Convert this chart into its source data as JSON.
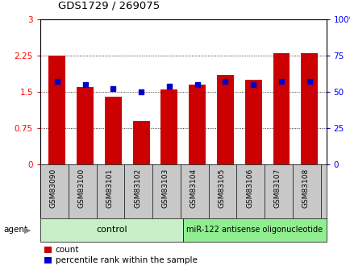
{
  "title": "GDS1729 / 269075",
  "categories": [
    "GSM83090",
    "GSM83100",
    "GSM83101",
    "GSM83102",
    "GSM83103",
    "GSM83104",
    "GSM83105",
    "GSM83106",
    "GSM83107",
    "GSM83108"
  ],
  "red_values": [
    2.25,
    1.6,
    1.4,
    0.9,
    1.55,
    1.65,
    1.85,
    1.75,
    2.3,
    2.3
  ],
  "blue_values_pct": [
    57,
    55,
    52,
    50,
    54,
    55,
    57,
    55,
    57,
    57
  ],
  "left_ylim": [
    0,
    3
  ],
  "right_ylim": [
    0,
    100
  ],
  "left_yticks": [
    0,
    0.75,
    1.5,
    2.25,
    3
  ],
  "right_yticks": [
    0,
    25,
    50,
    75,
    100
  ],
  "left_ytick_labels": [
    "0",
    "0.75",
    "1.5",
    "2.25",
    "3"
  ],
  "right_ytick_labels": [
    "0",
    "25",
    "50",
    "75",
    "100%"
  ],
  "bar_color": "#cc0000",
  "dot_color": "#0000cc",
  "bg_color": "#c8c8c8",
  "control_color": "#c8f0c8",
  "treatment_color": "#90ee90",
  "control_label": "control",
  "treatment_label": "miR-122 antisense oligonucleotide",
  "n_control": 5,
  "n_treatment": 5,
  "legend_count": "count",
  "legend_pct": "percentile rank within the sample",
  "agent_label": "agent"
}
